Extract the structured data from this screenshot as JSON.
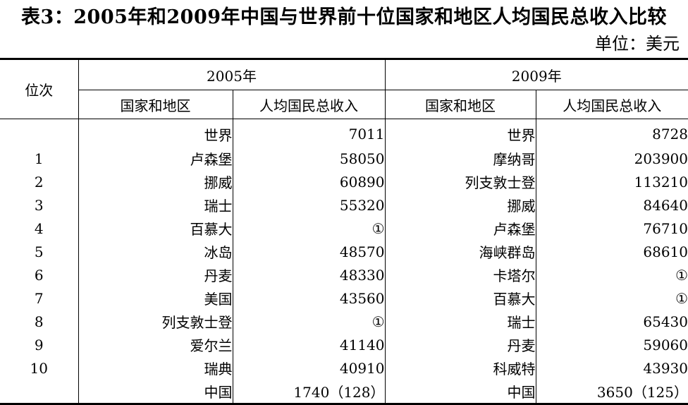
{
  "title": "表3：2005年和2009年中国与世界前十位国家和地区人均国民总收入比较",
  "unit": "单位：美元",
  "headers": {
    "rank": "位次",
    "year_2005": "2005年",
    "year_2009": "2009年",
    "country": "国家和地区",
    "gni": "人均国民总收入"
  },
  "rows": [
    {
      "rank": "",
      "c2005": "世界",
      "v2005": "7011",
      "c2009": "世界",
      "v2009": "8728"
    },
    {
      "rank": "1",
      "c2005": "卢森堡",
      "v2005": "58050",
      "c2009": "摩纳哥",
      "v2009": "203900"
    },
    {
      "rank": "2",
      "c2005": "挪威",
      "v2005": "60890",
      "c2009": "列支敦士登",
      "v2009": "113210"
    },
    {
      "rank": "3",
      "c2005": "瑞士",
      "v2005": "55320",
      "c2009": "挪威",
      "v2009": "84640"
    },
    {
      "rank": "4",
      "c2005": "百慕大",
      "v2005": "①",
      "c2009": "卢森堡",
      "v2009": "76710"
    },
    {
      "rank": "5",
      "c2005": "冰岛",
      "v2005": "48570",
      "c2009": "海峡群岛",
      "v2009": "68610"
    },
    {
      "rank": "6",
      "c2005": "丹麦",
      "v2005": "48330",
      "c2009": "卡塔尔",
      "v2009": "①"
    },
    {
      "rank": "7",
      "c2005": "美国",
      "v2005": "43560",
      "c2009": "百慕大",
      "v2009": "①"
    },
    {
      "rank": "8",
      "c2005": "列支敦士登",
      "v2005": "①",
      "c2009": "瑞士",
      "v2009": "65430"
    },
    {
      "rank": "9",
      "c2005": "爱尔兰",
      "v2005": "41140",
      "c2009": "丹麦",
      "v2009": "59060"
    },
    {
      "rank": "10",
      "c2005": "瑞典",
      "v2005": "40910",
      "c2009": "科威特",
      "v2009": "43930"
    },
    {
      "rank": "",
      "c2005": "中国",
      "v2005": "1740（128）",
      "c2009": "中国",
      "v2009": "3650（125）"
    }
  ]
}
